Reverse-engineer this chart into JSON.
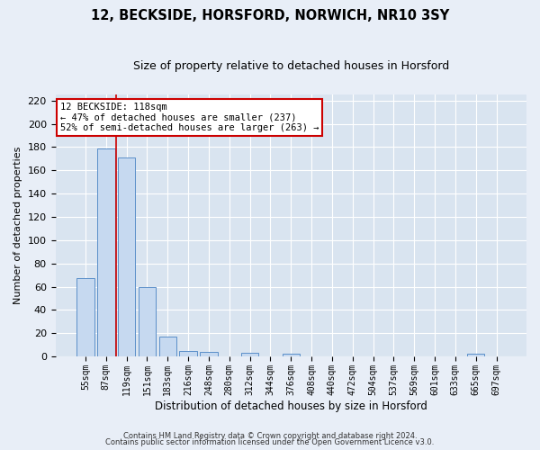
{
  "title": "12, BECKSIDE, HORSFORD, NORWICH, NR10 3SY",
  "subtitle": "Size of property relative to detached houses in Horsford",
  "xlabel": "Distribution of detached houses by size in Horsford",
  "ylabel": "Number of detached properties",
  "bar_labels": [
    "55sqm",
    "87sqm",
    "119sqm",
    "151sqm",
    "183sqm",
    "216sqm",
    "248sqm",
    "280sqm",
    "312sqm",
    "344sqm",
    "376sqm",
    "408sqm",
    "440sqm",
    "472sqm",
    "504sqm",
    "537sqm",
    "569sqm",
    "601sqm",
    "633sqm",
    "665sqm",
    "697sqm"
  ],
  "bar_values": [
    67,
    179,
    171,
    60,
    17,
    5,
    4,
    0,
    3,
    0,
    2,
    0,
    0,
    0,
    0,
    0,
    0,
    0,
    0,
    2,
    0
  ],
  "bar_color": "#c6d9f0",
  "bar_edge_color": "#5b8fc9",
  "red_line_x": 1.5,
  "annotation_title": "12 BECKSIDE: 118sqm",
  "annotation_line1": "← 47% of detached houses are smaller (237)",
  "annotation_line2": "52% of semi-detached houses are larger (263) →",
  "annotation_box_color": "#ffffff",
  "annotation_box_edge": "#cc0000",
  "red_line_color": "#cc0000",
  "ylim": [
    0,
    225
  ],
  "yticks": [
    0,
    20,
    40,
    60,
    80,
    100,
    120,
    140,
    160,
    180,
    200,
    220
  ],
  "footnote1": "Contains HM Land Registry data © Crown copyright and database right 2024.",
  "footnote2": "Contains public sector information licensed under the Open Government Licence v3.0.",
  "background_color": "#e8eef7",
  "plot_background": "#d9e4f0"
}
